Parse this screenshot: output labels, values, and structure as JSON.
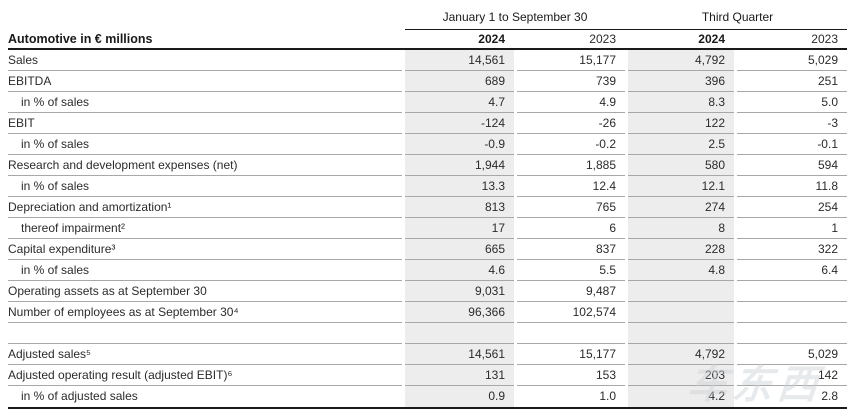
{
  "table": {
    "title": "Automotive in € millions",
    "column_groups": {
      "ytd": "January 1 to September 30",
      "quarter": "Third Quarter"
    },
    "year_headers": [
      "2024",
      "2023",
      "2024",
      "2023"
    ],
    "rows": [
      {
        "label": "Sales",
        "values": [
          "14,561",
          "15,177",
          "4,792",
          "5,029"
        ]
      },
      {
        "label": "EBITDA",
        "values": [
          "689",
          "739",
          "396",
          "251"
        ]
      },
      {
        "label": "in % of sales",
        "values": [
          "4.7",
          "4.9",
          "8.3",
          "5.0"
        ]
      },
      {
        "label": "EBIT",
        "values": [
          "-124",
          "-26",
          "122",
          "-3"
        ]
      },
      {
        "label": "in % of sales",
        "values": [
          "-0.9",
          "-0.2",
          "2.5",
          "-0.1"
        ]
      },
      {
        "label": "Research and development expenses (net)",
        "values": [
          "1,944",
          "1,885",
          "580",
          "594"
        ]
      },
      {
        "label": "in % of sales",
        "values": [
          "13.3",
          "12.4",
          "12.1",
          "11.8"
        ]
      },
      {
        "label": "Depreciation and amortization¹",
        "values": [
          "813",
          "765",
          "274",
          "254"
        ]
      },
      {
        "label": "thereof impairment²",
        "values": [
          "17",
          "6",
          "8",
          "1"
        ]
      },
      {
        "label": "Capital expenditure³",
        "values": [
          "665",
          "837",
          "228",
          "322"
        ]
      },
      {
        "label": "in % of sales",
        "values": [
          "4.6",
          "5.5",
          "4.8",
          "6.4"
        ]
      },
      {
        "label": "Operating assets as at September 30",
        "values": [
          "9,031",
          "9,487",
          "",
          ""
        ]
      },
      {
        "label": "Number of employees as at September 30⁴",
        "values": [
          "96,366",
          "102,574",
          "",
          ""
        ]
      },
      {
        "label": "",
        "values": [
          "",
          "",
          "",
          ""
        ]
      },
      {
        "label": "Adjusted sales⁵",
        "values": [
          "14,561",
          "15,177",
          "4,792",
          "5,029"
        ]
      },
      {
        "label": "Adjusted operating result (adjusted EBIT)⁶",
        "values": [
          "131",
          "153",
          "203",
          "142"
        ]
      },
      {
        "label": "in % of adjusted sales",
        "values": [
          "0.9",
          "1.0",
          "4.2",
          "2.8"
        ]
      }
    ]
  },
  "watermark": "车东西",
  "colors": {
    "shaded_column": "#ededed",
    "row_divider": "#a8a8a8",
    "strong_rule": "#1a1a1a",
    "text": "#2b2b2b"
  }
}
